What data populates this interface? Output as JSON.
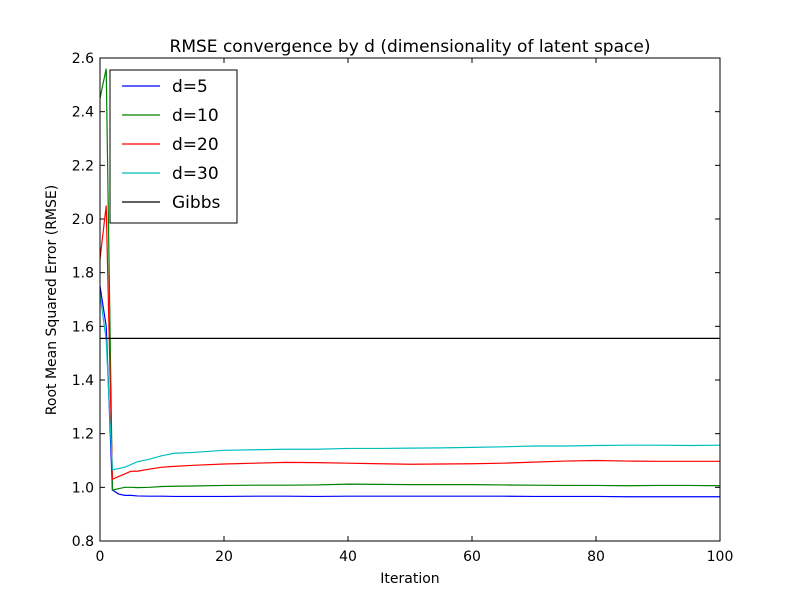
{
  "chart_data": {
    "type": "line",
    "title": "RMSE convergence by d (dimensionality of latent space)",
    "xlabel": "Iteration",
    "ylabel": "Root Mean Squared Error (RMSE)",
    "xlim": [
      0,
      100
    ],
    "ylim": [
      0.8,
      2.6
    ],
    "xticks": [
      0,
      20,
      40,
      60,
      80,
      100
    ],
    "yticks": [
      0.8,
      1.0,
      1.2,
      1.4,
      1.6,
      1.8,
      2.0,
      2.2,
      2.4,
      2.6
    ],
    "grid": false,
    "legend_position": "top-left",
    "series": [
      {
        "name": "d=5",
        "color": "#0000ff",
        "x": [
          0,
          1,
          2,
          3,
          4,
          5,
          6,
          8,
          10,
          12,
          15,
          20,
          25,
          30,
          35,
          40,
          45,
          50,
          55,
          60,
          65,
          70,
          75,
          80,
          85,
          90,
          95,
          100
        ],
        "y": [
          1.75,
          1.6,
          0.99,
          0.975,
          0.97,
          0.97,
          0.968,
          0.967,
          0.967,
          0.966,
          0.966,
          0.966,
          0.967,
          0.967,
          0.966,
          0.967,
          0.967,
          0.967,
          0.967,
          0.967,
          0.967,
          0.966,
          0.966,
          0.966,
          0.965,
          0.965,
          0.965,
          0.965
        ]
      },
      {
        "name": "d=10",
        "color": "#008000",
        "x": [
          0,
          1,
          2,
          3,
          4,
          5,
          6,
          8,
          10,
          12,
          15,
          20,
          25,
          30,
          35,
          40,
          45,
          50,
          55,
          60,
          65,
          70,
          75,
          80,
          85,
          90,
          95,
          100
        ],
        "y": [
          2.45,
          2.56,
          0.99,
          0.995,
          1.0,
          1.0,
          0.999,
          1.0,
          1.003,
          1.004,
          1.005,
          1.007,
          1.008,
          1.008,
          1.009,
          1.012,
          1.011,
          1.01,
          1.01,
          1.01,
          1.009,
          1.008,
          1.007,
          1.007,
          1.006,
          1.007,
          1.007,
          1.006
        ]
      },
      {
        "name": "d=20",
        "color": "#ff0000",
        "x": [
          0,
          1,
          2,
          3,
          4,
          5,
          6,
          8,
          10,
          12,
          15,
          20,
          25,
          30,
          35,
          40,
          45,
          50,
          55,
          60,
          65,
          70,
          75,
          80,
          85,
          90,
          95,
          100
        ],
        "y": [
          1.85,
          2.05,
          1.03,
          1.04,
          1.05,
          1.06,
          1.06,
          1.068,
          1.075,
          1.078,
          1.082,
          1.087,
          1.09,
          1.093,
          1.092,
          1.09,
          1.088,
          1.086,
          1.087,
          1.088,
          1.09,
          1.094,
          1.098,
          1.1,
          1.098,
          1.097,
          1.097,
          1.097
        ]
      },
      {
        "name": "d=30",
        "color": "#00bfbf",
        "x": [
          0,
          1,
          2,
          3,
          4,
          5,
          6,
          8,
          10,
          12,
          15,
          20,
          25,
          30,
          35,
          40,
          45,
          50,
          55,
          60,
          65,
          70,
          75,
          80,
          85,
          90,
          95,
          100
        ],
        "y": [
          1.72,
          1.55,
          1.065,
          1.07,
          1.075,
          1.085,
          1.095,
          1.105,
          1.118,
          1.127,
          1.13,
          1.138,
          1.14,
          1.142,
          1.142,
          1.145,
          1.145,
          1.146,
          1.147,
          1.149,
          1.151,
          1.154,
          1.154,
          1.156,
          1.157,
          1.157,
          1.156,
          1.157
        ]
      },
      {
        "name": "Gibbs",
        "color": "#000000",
        "x": [
          0,
          100
        ],
        "y": [
          1.555,
          1.555
        ]
      }
    ]
  }
}
